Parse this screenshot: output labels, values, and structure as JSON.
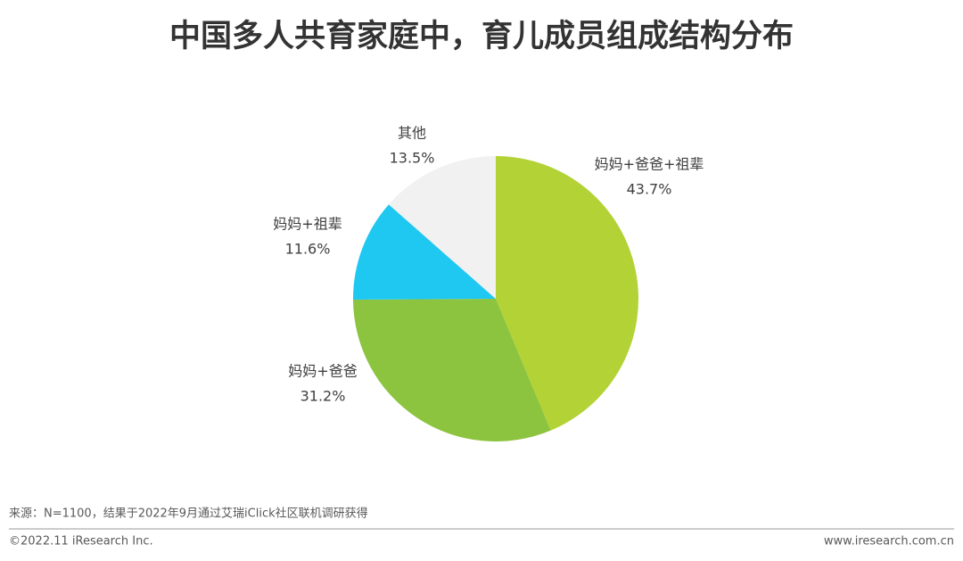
{
  "chart_data": {
    "type": "pie",
    "title": "中国多人共育家庭中，育儿成员组成结构分布",
    "categories": [
      "妈妈+爸爸+祖辈",
      "妈妈+爸爸",
      "妈妈+祖辈",
      "其他"
    ],
    "values": [
      43.7,
      31.2,
      11.6,
      13.5
    ],
    "value_labels": [
      "43.7%",
      "31.2%",
      "11.6%",
      "13.5%"
    ],
    "colors": [
      "#b3d235",
      "#8cc43f",
      "#1fc8f1",
      "#f1f1f1"
    ]
  },
  "source": "来源：N=1100，结果于2022年9月通过艾瑞iClick社区联机调研获得",
  "footer": {
    "copyright": "©2022.11 iResearch Inc.",
    "url": "www.iresearch.com.cn"
  }
}
